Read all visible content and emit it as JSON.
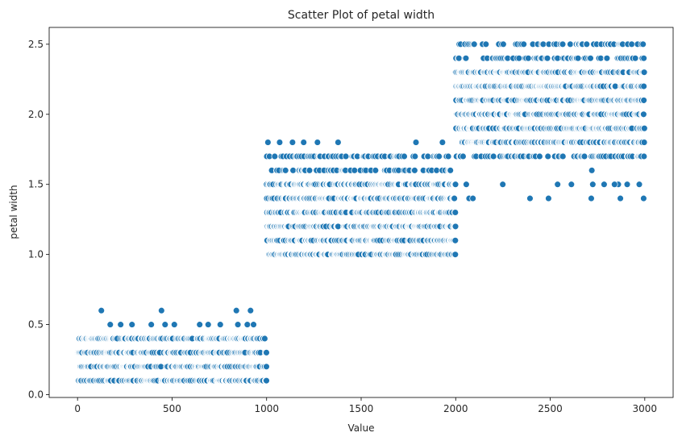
{
  "chart_data": {
    "type": "scatter",
    "title": "Scatter Plot of petal width",
    "xlabel": "Value",
    "ylabel": "petal width",
    "xlim": [
      -150,
      3150
    ],
    "ylim": [
      -0.02,
      2.62
    ],
    "xticks": [
      0,
      500,
      1000,
      1500,
      2000,
      2500,
      3000
    ],
    "yticks": [
      0.0,
      0.5,
      1.0,
      1.5,
      2.0,
      2.5
    ],
    "grid": false,
    "legend": "none",
    "marker_color": "#1f77b4",
    "marker_edge": "#ffffff",
    "series": [
      {
        "x_range": [
          0,
          999
        ],
        "frequent_values": [
          0.1,
          0.2,
          0.3,
          0.4
        ],
        "rare_points": [
          [
            126,
            0.6
          ],
          [
            173,
            0.5
          ],
          [
            228,
            0.5
          ],
          [
            288,
            0.5
          ],
          [
            390,
            0.5
          ],
          [
            444,
            0.6
          ],
          [
            463,
            0.5
          ],
          [
            512,
            0.5
          ],
          [
            646,
            0.5
          ],
          [
            691,
            0.5
          ],
          [
            755,
            0.5
          ],
          [
            840,
            0.6
          ],
          [
            848,
            0.5
          ],
          [
            898,
            0.5
          ],
          [
            915,
            0.6
          ],
          [
            931,
            0.5
          ]
        ]
      },
      {
        "x_range": [
          1000,
          1999
        ],
        "frequent_values": [
          1.0,
          1.1,
          1.2,
          1.3,
          1.4,
          1.5
        ],
        "semi_frequent_values": [
          1.6,
          1.7
        ],
        "rare_points": [
          [
            1007,
            1.8
          ],
          [
            1069,
            1.8
          ],
          [
            1137,
            1.8
          ],
          [
            1196,
            1.8
          ],
          [
            1269,
            1.8
          ],
          [
            1378,
            1.8
          ],
          [
            1790,
            1.8
          ],
          [
            1930,
            1.8
          ]
        ]
      },
      {
        "x_range": [
          2000,
          2999
        ],
        "frequent_values": [
          1.8,
          1.9,
          2.0,
          2.1,
          2.2,
          2.3
        ],
        "semi_frequent_values": [
          1.7,
          2.4,
          2.5
        ],
        "rare_points": [
          [
            2056,
            1.5
          ],
          [
            2071,
            1.4
          ],
          [
            2091,
            1.4
          ],
          [
            2249,
            1.5
          ],
          [
            2393,
            1.4
          ],
          [
            2491,
            1.4
          ],
          [
            2539,
            1.5
          ],
          [
            2612,
            1.5
          ],
          [
            2717,
            1.4
          ],
          [
            2720,
            1.6
          ],
          [
            2785,
            1.5
          ],
          [
            2860,
            1.5
          ],
          [
            2871,
            1.4
          ],
          [
            2907,
            1.5
          ],
          [
            2971,
            1.5
          ],
          [
            2994,
            1.4
          ],
          [
            2725,
            1.5
          ],
          [
            2840,
            1.5
          ]
        ]
      }
    ]
  }
}
